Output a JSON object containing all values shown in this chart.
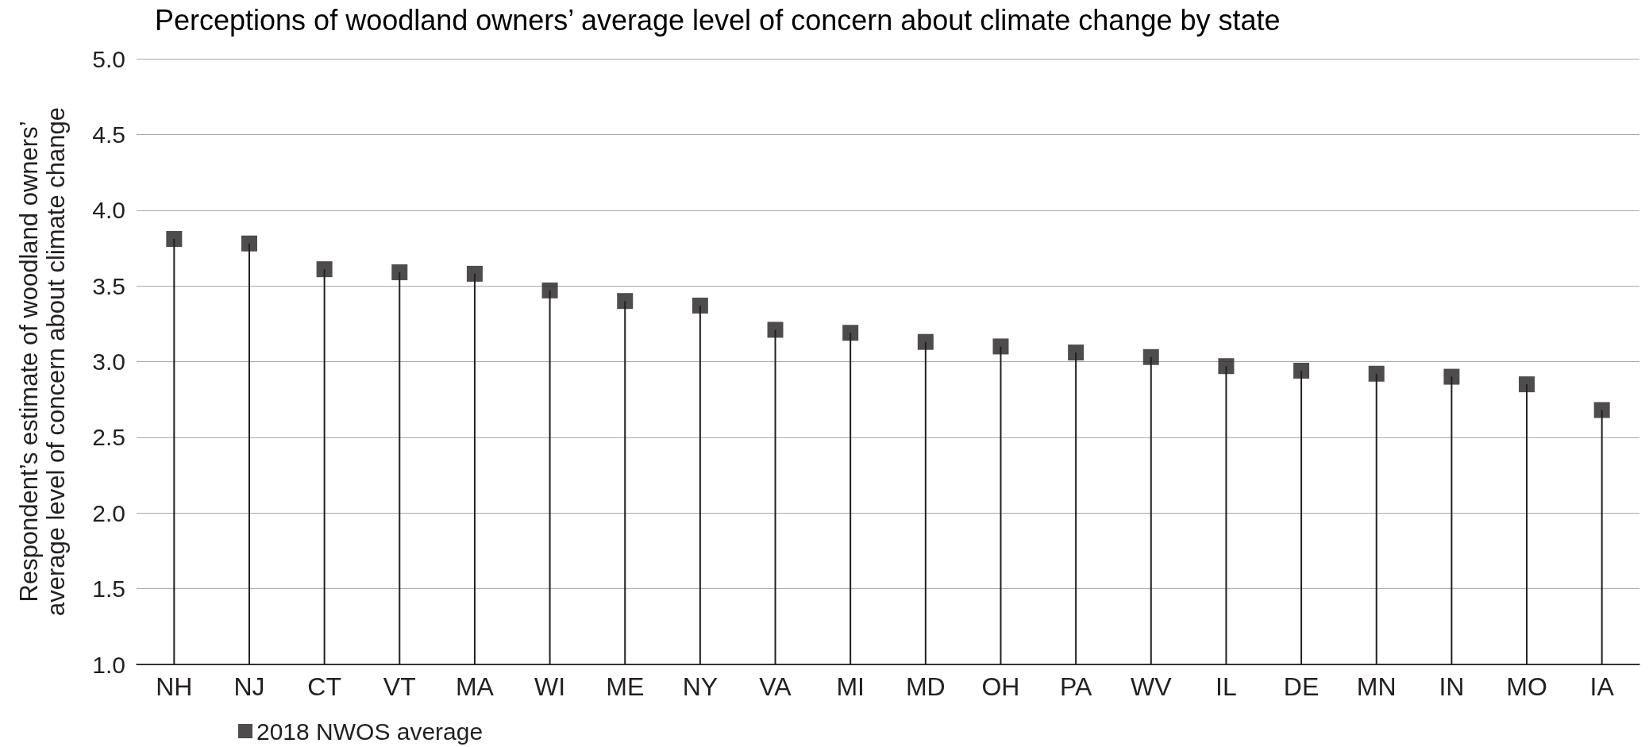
{
  "chart_data": {
    "type": "lollipop",
    "title": "Perceptions of woodland owners’ average level of concern about climate change by state",
    "ylabel": "Respondent’s estimate of woodland owners’\naverage level of concern about climate change",
    "categories": [
      "NH",
      "NJ",
      "CT",
      "VT",
      "MA",
      "WI",
      "ME",
      "NY",
      "VA",
      "MI",
      "MD",
      "OH",
      "PA",
      "WV",
      "IL",
      "DE",
      "MN",
      "IN",
      "MO",
      "IA"
    ],
    "series": [
      {
        "name": "2018 NWOS average",
        "color": "#231f20",
        "values": [
          3.81,
          3.78,
          3.61,
          3.59,
          3.58,
          3.47,
          3.4,
          3.37,
          3.21,
          3.19,
          3.13,
          3.1,
          3.06,
          3.03,
          2.97,
          2.94,
          2.92,
          2.9,
          2.85,
          2.68
        ]
      }
    ],
    "ylim": [
      1,
      5
    ],
    "yticks": [
      {
        "value": 1,
        "label": "1.0"
      },
      {
        "value": 1.5,
        "label": "1.5"
      },
      {
        "value": 2,
        "label": "2.0"
      },
      {
        "value": 2.5,
        "label": "2.5"
      },
      {
        "value": 3,
        "label": "3.0"
      },
      {
        "value": 3.5,
        "label": "3.5"
      },
      {
        "value": 4,
        "label": "4.0"
      },
      {
        "value": 4.5,
        "label": "4.5"
      },
      {
        "value": 5,
        "label": "5.0"
      }
    ],
    "grid": "y",
    "legend": "bottom left",
    "marker": "square"
  }
}
